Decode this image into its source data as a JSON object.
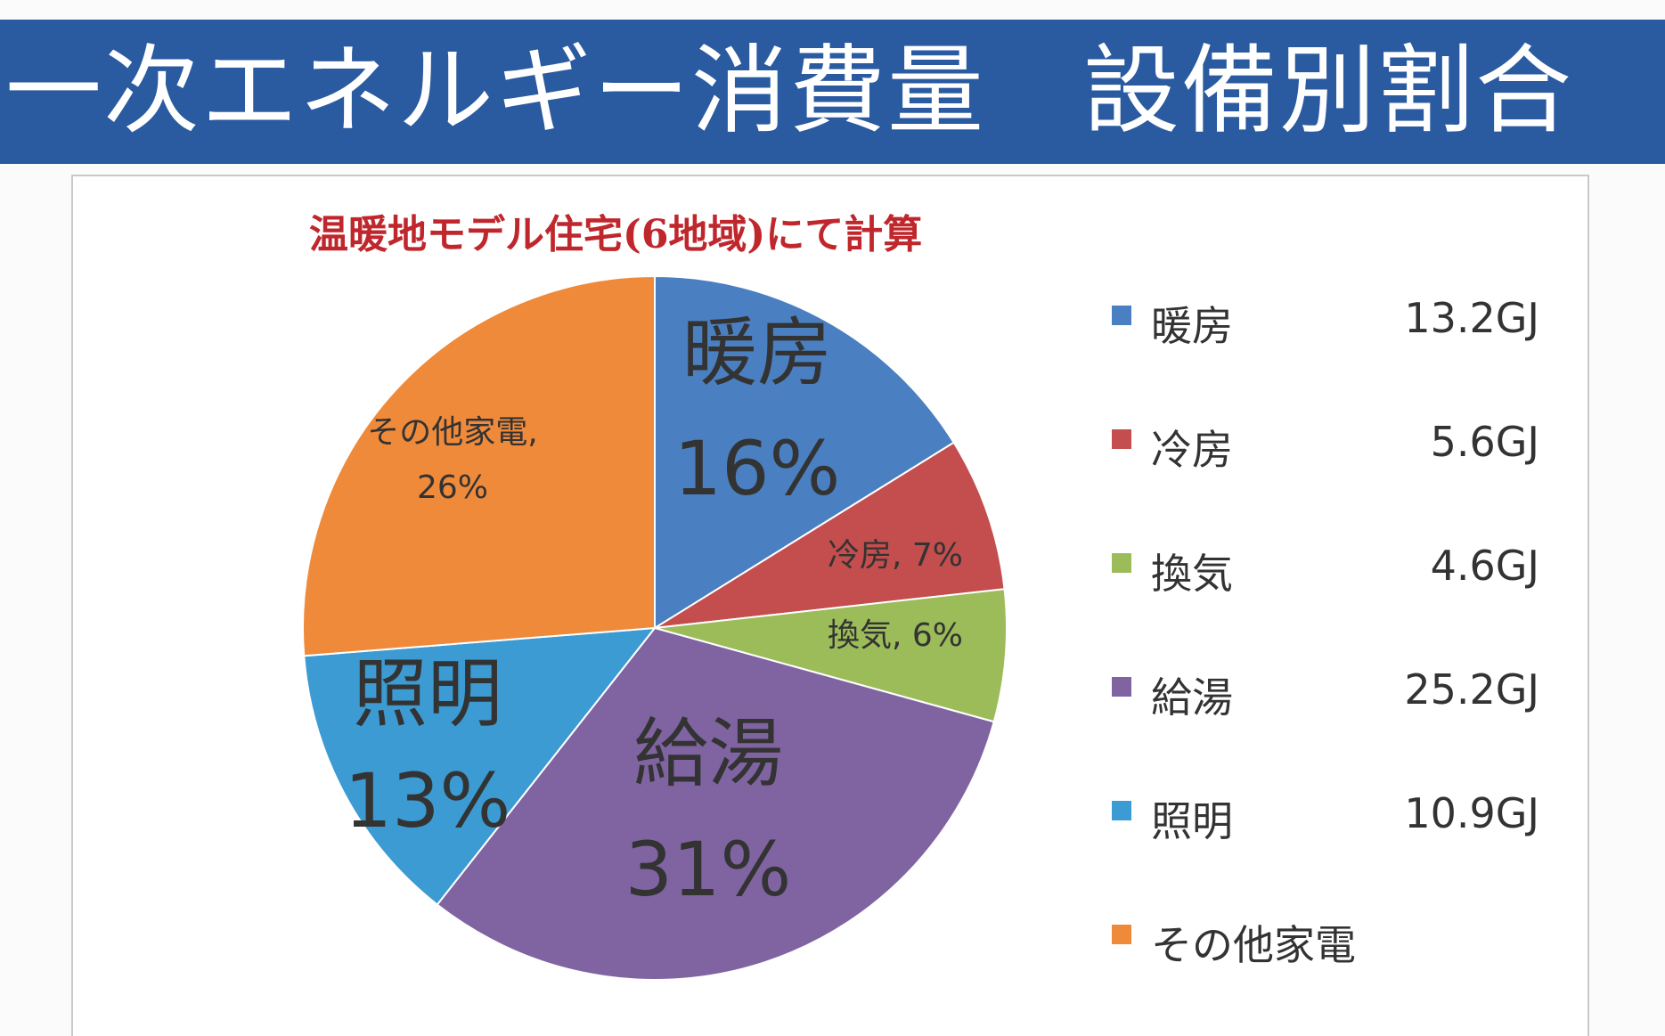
{
  "header": {
    "title": "一次エネルギー消費量　設備別割合",
    "background": "#2a5aa0"
  },
  "chart_data": {
    "type": "pie",
    "title": "温暖地モデル住宅(6地域)にて計算",
    "title_color": "#c0272d",
    "slices": [
      {
        "label": "暖房",
        "value": 16,
        "value_label": "16%",
        "color": "#4a7fc1",
        "legend_value": "13.2GJ",
        "label_style": "large",
        "label_sep": "\n"
      },
      {
        "label": "冷房",
        "value": 7,
        "value_label": "7%",
        "color": "#c44d4d",
        "legend_value": "5.6GJ",
        "label_style": "small",
        "label_sep": ", "
      },
      {
        "label": "換気",
        "value": 6,
        "value_label": "6%",
        "color": "#9cbb59",
        "legend_value": "4.6GJ",
        "label_style": "small",
        "label_sep": ", "
      },
      {
        "label": "給湯",
        "value": 31,
        "value_label": "31%",
        "color": "#8064a2",
        "legend_value": "25.2GJ",
        "label_style": "large",
        "label_sep": "\n"
      },
      {
        "label": "照明",
        "value": 13,
        "value_label": "13%",
        "color": "#3b9bd2",
        "legend_value": "10.9GJ",
        "label_style": "large",
        "label_sep": "\n"
      },
      {
        "label": "その他家電",
        "value": 26,
        "value_label": "26%",
        "color": "#f08a3b",
        "legend_value": "",
        "label_style": "small",
        "label_sep": ",\n"
      }
    ],
    "legend_position": "right"
  }
}
